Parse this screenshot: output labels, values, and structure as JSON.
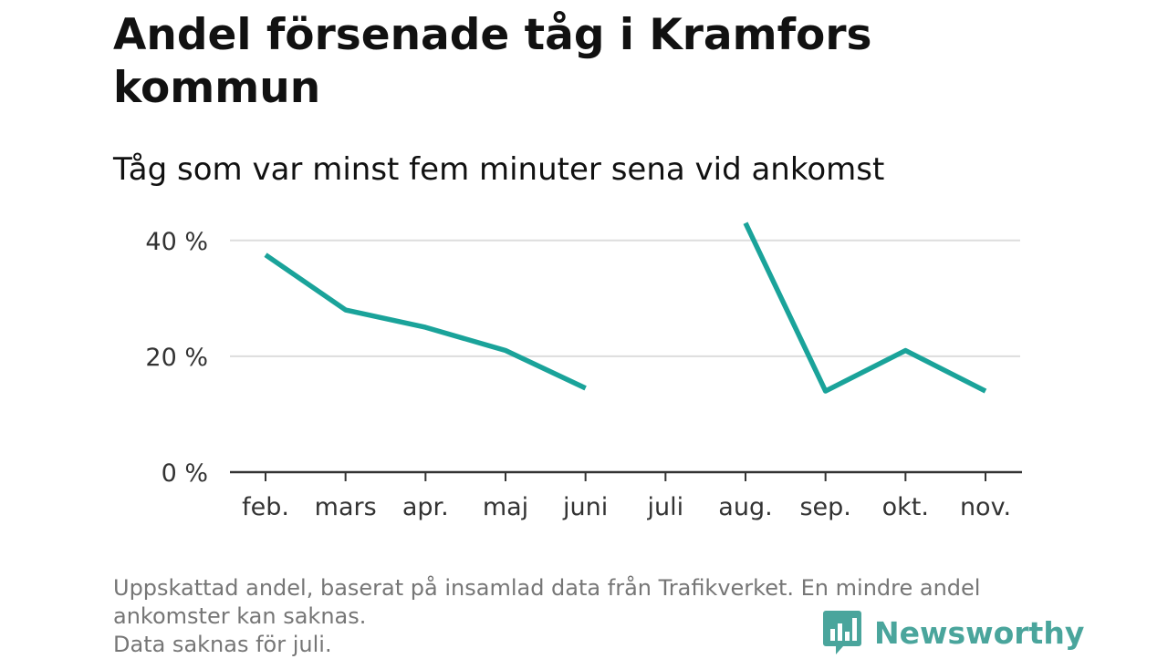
{
  "title": "Andel försenade tåg i Kramfors kommun",
  "subtitle": "Tåg som var minst fem minuter sena vid ankomst",
  "footnote": {
    "line1": "Uppskattad andel, baserat på insamlad data från Trafikverket. En mindre andel",
    "line2": "ankomster kan saknas.",
    "line3": "Data saknas för juli."
  },
  "brand": {
    "name": "Newsworthy",
    "color": "#4aa59c",
    "icon": "bar-chart-speech-bubble-icon"
  },
  "colors": {
    "line": "#1aa39a",
    "grid": "#dddddd",
    "axis": "#333333",
    "text": "#111111",
    "footnote": "#767676"
  },
  "chart_data": {
    "type": "line",
    "title": "Andel försenade tåg i Kramfors kommun",
    "subtitle": "Tåg som var minst fem minuter sena vid ankomst",
    "categories": [
      "feb.",
      "mars",
      "apr.",
      "maj",
      "juni",
      "juli",
      "aug.",
      "sep.",
      "okt.",
      "nov."
    ],
    "series": [
      {
        "values": [
          37.5,
          28,
          25,
          21,
          14.5,
          null,
          43,
          14,
          21,
          14
        ]
      }
    ],
    "ylim": [
      0,
      45
    ],
    "y_ticks": [
      0,
      20,
      40
    ],
    "y_tick_labels": [
      "0 %",
      "20 %",
      "40 %"
    ],
    "xlabel": "",
    "ylabel": "",
    "grid": true,
    "legend": "none"
  }
}
